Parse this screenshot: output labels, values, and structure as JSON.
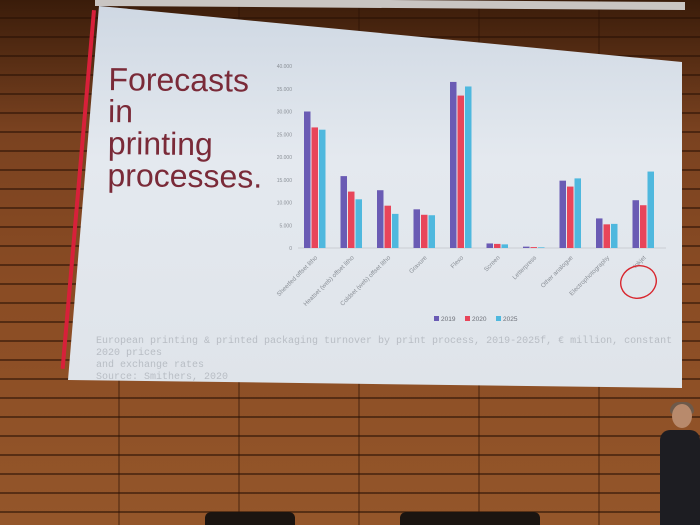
{
  "slide": {
    "title_lines": [
      "Forecasts in",
      "printing",
      "processes."
    ],
    "caption_lines": [
      "European printing & printed packaging turnover by print process, 2019-2025f, € million, constant 2020 prices",
      "and exchange rates",
      "Source: Smithers, 2020"
    ]
  },
  "colors": {
    "series_2019": "#6a5bb4",
    "series_2020": "#e8455a",
    "series_2025": "#4fb8de",
    "title": "#7a2a38",
    "slide_accent": "#d8203a",
    "highlight_circle": "#d8262e"
  },
  "chart_data": {
    "type": "bar",
    "categories": [
      "Sheetfed offset litho",
      "Heatset (web) offset litho",
      "Coldset (web) offset litho",
      "Gravure",
      "Flexo",
      "Screen",
      "Letterpress",
      "Other analogue",
      "Electrophotography",
      "Inkjet"
    ],
    "series": [
      {
        "name": "2019",
        "values": [
          30000,
          15800,
          12700,
          8500,
          36500,
          1000,
          300,
          14800,
          6500,
          10500
        ]
      },
      {
        "name": "2020",
        "values": [
          26500,
          12400,
          9300,
          7300,
          33500,
          900,
          200,
          13500,
          5200,
          9400
        ]
      },
      {
        "name": "2025",
        "values": [
          26000,
          10700,
          7500,
          7200,
          35500,
          800,
          150,
          15300,
          5300,
          16800
        ]
      }
    ],
    "ylim": [
      0,
      40000
    ],
    "yticks": [
      "0",
      "5.000",
      "10.000",
      "15.000",
      "20.000",
      "25.000",
      "30.000",
      "35.000",
      "40.000"
    ],
    "yticks_values": [
      0,
      5000,
      10000,
      15000,
      20000,
      25000,
      30000,
      35000,
      40000
    ],
    "legend": [
      "2019",
      "2020",
      "2025"
    ],
    "legend_position": "bottom",
    "highlighted_category": "Inkjet",
    "grid": false
  }
}
